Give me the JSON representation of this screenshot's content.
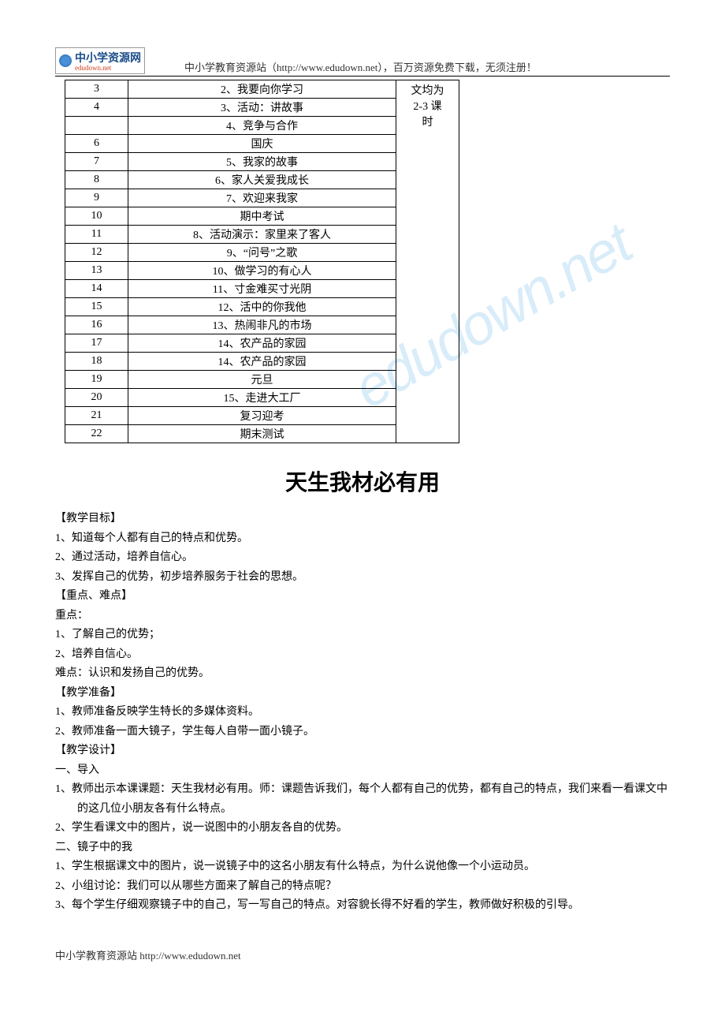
{
  "header": {
    "logo_text": "中小学资源网",
    "logo_sub": "edudown.net",
    "tagline": "中小学教育资源站（http://www.edudown.net），百万资源免费下载，无须注册！"
  },
  "schedule": {
    "note_merged": "文均为\n2-3 课\n时",
    "rows": [
      {
        "num": "3",
        "content": "2、我要向你学习"
      },
      {
        "num": "4",
        "content": "3、活动：讲故事"
      },
      {
        "num": "",
        "content": "4、竞争与合作"
      },
      {
        "num": "6",
        "content": "国庆"
      },
      {
        "num": "7",
        "content": "5、我家的故事"
      },
      {
        "num": "8",
        "content": "6、家人关爱我成长"
      },
      {
        "num": "9",
        "content": "7、欢迎来我家"
      },
      {
        "num": "10",
        "content": "期中考试"
      },
      {
        "num": "11",
        "content": "8、活动演示：家里来了客人"
      },
      {
        "num": "12",
        "content": "9、“问号”之歌"
      },
      {
        "num": "13",
        "content": "10、做学习的有心人"
      },
      {
        "num": "14",
        "content": "11、寸金难买寸光阴"
      },
      {
        "num": "15",
        "content": "12、活中的你我他"
      },
      {
        "num": "16",
        "content": "13、热闹非凡的市场"
      },
      {
        "num": "17",
        "content": "14、农产品的家园"
      },
      {
        "num": "18",
        "content": "14、农产品的家园"
      },
      {
        "num": "19",
        "content": "元旦"
      },
      {
        "num": "20",
        "content": "15、走进大工厂"
      },
      {
        "num": "21",
        "content": "复习迎考"
      },
      {
        "num": "22",
        "content": "期末测试"
      }
    ]
  },
  "lesson": {
    "title": "天生我材必有用",
    "objectives_heading": "【教学目标】",
    "objectives": [
      "1、知道每个人都有自己的特点和优势。",
      "2、通过活动，培养自信心。",
      "3、发挥自己的优势，初步培养服务于社会的思想。"
    ],
    "keypoints_heading": "【重点、难点】",
    "keypoint_label": "重点：",
    "keypoints": [
      "1、了解自己的优势；",
      "2、培养自信心。"
    ],
    "difficulty": "难点：认识和发扬自己的优势。",
    "prep_heading": "【教学准备】",
    "preps": [
      "1、教师准备反映学生特长的多媒体资料。",
      "2、教师准备一面大镜子，学生每人自带一面小镜子。"
    ],
    "design_heading": "【教学设计】",
    "section1_heading": "一、导入",
    "section1_items": [
      "1、教师出示本课课题：天生我材必有用。师：课题告诉我们，每个人都有自己的优势，都有自己的特点，我们来看一看课文中的这几位小朋友各有什么特点。",
      "2、学生看课文中的图片，说一说图中的小朋友各自的优势。"
    ],
    "section2_heading": "二、镜子中的我",
    "section2_items": [
      "1、学生根据课文中的图片，说一说镜子中的这名小朋友有什么特点，为什么说他像一个小运动员。",
      "2、小组讨论：我们可以从哪些方面来了解自己的特点呢？",
      "3、每个学生仔细观察镜子中的自己，写一写自己的特点。对容貌长得不好看的学生，教师做好积极的引导。"
    ]
  },
  "footer": {
    "text": "中小学教育资源站 http://www.edudown.net"
  },
  "watermark": "edudown.net"
}
